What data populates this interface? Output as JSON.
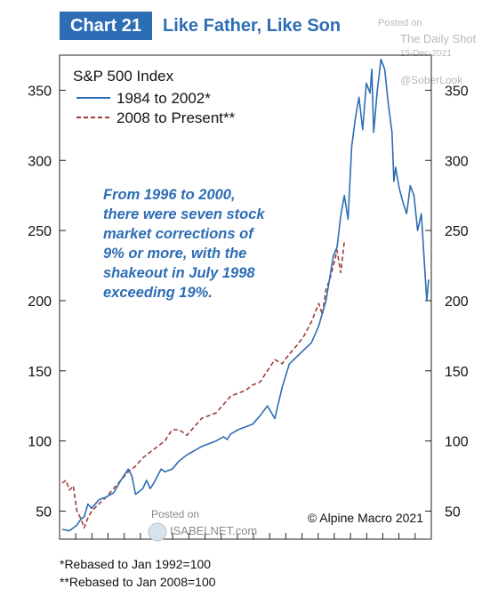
{
  "header": {
    "chart_number": "Chart 21",
    "title": "Like Father, Like Son"
  },
  "watermark": {
    "posted_on": "Posted on",
    "source": "The Daily Shot",
    "date": "15-Dec-2021",
    "handle": "@SoberLook",
    "isabel_posted": "Posted on",
    "isabel_site": "ISABELNET.com"
  },
  "footnotes": [
    "*Rebased to Jan 1992=100",
    "**Rebased to Jan 2008=100"
  ],
  "chart_data": {
    "type": "line",
    "title": "S&P 500 Index",
    "annotation": "From 1996 to 2000, there were seven stock market corrections of 9% or more, with the shakeout in July 1998 exceeding 19%.",
    "copyright": "© Alpine Macro 2021",
    "ylim": [
      30,
      375
    ],
    "xlim": [
      0,
      100
    ],
    "yticks": [
      50,
      100,
      150,
      200,
      250,
      300,
      350
    ],
    "legend_position": "top-left",
    "series": [
      {
        "name": "1984 to 2002*",
        "color": "#2d6db5",
        "dash": "",
        "x": [
          0,
          2,
          4,
          5,
          6,
          7,
          8,
          10,
          12,
          14,
          16,
          18,
          19,
          20,
          22,
          23,
          24,
          25,
          26,
          27,
          28,
          30,
          32,
          34,
          36,
          38,
          40,
          42,
          44,
          45,
          46,
          48,
          50,
          52,
          54,
          56,
          58,
          60,
          62,
          64,
          66,
          68,
          70,
          72,
          74,
          75,
          76,
          77,
          78,
          79,
          80,
          81,
          82,
          83,
          84,
          84.5,
          85,
          86,
          87,
          88,
          89,
          90,
          90.5,
          91,
          92,
          93,
          94,
          95,
          96,
          97,
          98,
          99,
          99.5,
          100
        ],
        "y": [
          37,
          36,
          40,
          44,
          46,
          55,
          52,
          58,
          60,
          63,
          72,
          80,
          75,
          62,
          66,
          72,
          66,
          70,
          75,
          80,
          78,
          80,
          86,
          90,
          93,
          96,
          98,
          100,
          103,
          101,
          105,
          108,
          110,
          112,
          118,
          125,
          116,
          138,
          155,
          160,
          165,
          170,
          182,
          200,
          232,
          238,
          260,
          275,
          258,
          310,
          330,
          345,
          322,
          355,
          348,
          365,
          320,
          350,
          372,
          365,
          340,
          320,
          285,
          295,
          280,
          270,
          262,
          282,
          275,
          250,
          262,
          220,
          200,
          215
        ],
        "label_position": "none"
      },
      {
        "name": "2008 to Present**",
        "color": "#a23a3a",
        "dash": "5,3",
        "x": [
          0,
          1,
          2,
          3,
          4,
          5,
          6,
          7,
          8,
          10,
          12,
          14,
          16,
          18,
          20,
          22,
          24,
          26,
          28,
          30,
          32,
          34,
          36,
          38,
          40,
          42,
          44,
          46,
          48,
          50,
          52,
          54,
          56,
          58,
          60,
          62,
          64,
          66,
          68,
          70,
          71,
          72,
          73,
          74,
          75,
          76,
          77
        ],
        "y": [
          70,
          72,
          65,
          68,
          50,
          45,
          38,
          45,
          50,
          55,
          60,
          66,
          72,
          78,
          82,
          88,
          92,
          96,
          100,
          108,
          108,
          104,
          110,
          116,
          118,
          120,
          126,
          132,
          134,
          136,
          140,
          142,
          150,
          158,
          155,
          162,
          168,
          175,
          185,
          198,
          190,
          208,
          215,
          225,
          236,
          220,
          242
        ],
        "label_position": "none"
      }
    ]
  }
}
